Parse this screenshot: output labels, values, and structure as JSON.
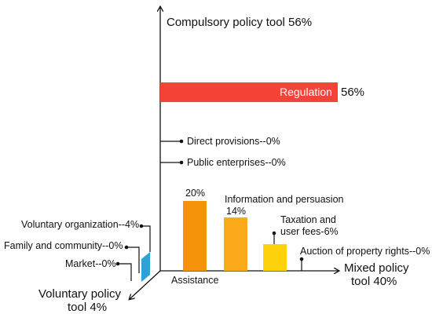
{
  "colors": {
    "regulation": "#f54337",
    "assistance": "#f5930a",
    "information": "#fbab1a",
    "taxation": "#fdd20a",
    "voluntary": "#2aa3d9",
    "axis": "#111111"
  },
  "axes": {
    "y_label": "Compulsory policy tool 56%",
    "x_label_line1": "Mixed policy",
    "x_label_line2": "tool 40%",
    "z_label_line1": "Voluntary policy",
    "z_label_line2": "tool 4%"
  },
  "compulsory": {
    "regulation": {
      "label": "Regulation",
      "value_label": "56%"
    },
    "direct_provisions": "Direct provisions--0%",
    "public_enterprises": "Public enterprises--0%"
  },
  "mixed": {
    "assistance": {
      "label": "Assistance",
      "value_label": "20%"
    },
    "information": {
      "label": "Information and persuasion",
      "value_label": "14%"
    },
    "taxation": {
      "label_line1": "Taxation and",
      "label_line2": "user fees-6%"
    },
    "auction": "Auction of property rights--0%"
  },
  "voluntary": {
    "organization": "Voluntary organization--4%",
    "family": "Family and community--0%",
    "market": "Market--0%"
  },
  "chart_data": {
    "type": "bar",
    "groups": [
      {
        "name": "Compulsory policy tool 56%",
        "categories": [
          "Regulation",
          "Direct provisions",
          "Public enterprises"
        ],
        "values": [
          56,
          0,
          0
        ]
      },
      {
        "name": "Mixed policy tool 40%",
        "categories": [
          "Assistance",
          "Information and persuasion",
          "Taxation and user fees",
          "Auction of property rights"
        ],
        "values": [
          20,
          14,
          6,
          0
        ]
      },
      {
        "name": "Voluntary policy tool 4%",
        "categories": [
          "Voluntary organization",
          "Family and community",
          "Market"
        ],
        "values": [
          4,
          0,
          0
        ]
      }
    ]
  }
}
